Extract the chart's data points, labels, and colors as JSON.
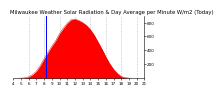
{
  "title": "Milwaukee Weather Solar Radiation & Day Average per Minute W/m2 (Today)",
  "background_color": "#ffffff",
  "plot_bg_color": "#ffffff",
  "grid_color": "#aaaaaa",
  "bar_color": "#ff0000",
  "bar_edge_color": "#cc0000",
  "blue_line_x": 8.3,
  "blue_line_color": "#0000ff",
  "x_start": 4,
  "x_end": 21,
  "ylim": [
    0,
    900
  ],
  "yticks": [
    200,
    400,
    600,
    800
  ],
  "ytick_labels": [
    "200",
    "400",
    "600",
    "800"
  ],
  "xtick_positions": [
    4,
    5,
    6,
    7,
    8,
    9,
    10,
    11,
    12,
    13,
    14,
    15,
    16,
    17,
    18,
    19,
    20,
    21
  ],
  "xtick_labels": [
    "4",
    "5",
    "6",
    "7",
    "8",
    "9",
    "10",
    "11",
    "12",
    "13",
    "14",
    "15",
    "16",
    "17",
    "18",
    "19",
    "20",
    "21"
  ],
  "vgrid_positions": [
    6,
    8,
    10,
    12,
    14,
    16,
    18,
    20
  ],
  "title_fontsize": 3.8,
  "tick_fontsize": 3.0,
  "solar_data_hours": [
    4.0,
    4.5,
    5.0,
    5.5,
    6.0,
    6.5,
    7.0,
    7.5,
    8.0,
    8.5,
    9.0,
    9.5,
    10.0,
    10.5,
    11.0,
    11.5,
    12.0,
    12.5,
    13.0,
    13.5,
    14.0,
    14.5,
    15.0,
    15.5,
    16.0,
    16.5,
    17.0,
    17.5,
    18.0,
    18.5,
    19.0,
    19.5,
    20.0,
    20.5,
    21.0
  ],
  "solar_data_values": [
    0,
    0,
    2,
    5,
    20,
    50,
    100,
    180,
    280,
    370,
    460,
    540,
    640,
    720,
    790,
    840,
    850,
    830,
    800,
    760,
    700,
    620,
    520,
    420,
    310,
    210,
    130,
    70,
    25,
    8,
    2,
    0,
    0,
    0,
    0
  ]
}
